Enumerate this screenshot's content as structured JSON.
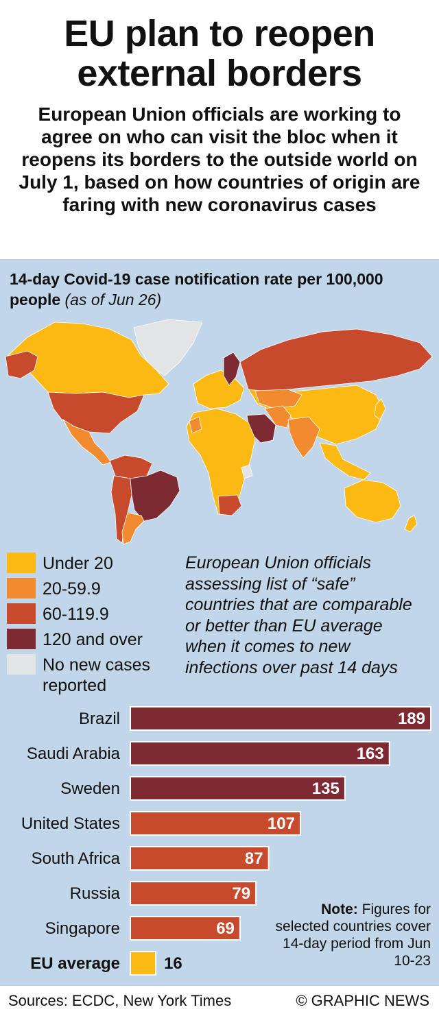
{
  "header": {
    "title": "EU plan to reopen external borders",
    "subtitle": "European Union officials are working to agree on who can visit the bloc when it reopens its borders to the outside world on July 1, based on how countries of origin are faring with new coronavirus cases"
  },
  "map": {
    "title": "14-day Covid-19 case notification rate per 100,000 people",
    "title_note": "(as of Jun 26)",
    "ocean_color": "#c2d6ea"
  },
  "legend": {
    "items": [
      {
        "label": "Under 20",
        "color": "#fdb913"
      },
      {
        "label": "20-59.9",
        "color": "#f28b30"
      },
      {
        "label": "60-119.9",
        "color": "#c84a2c"
      },
      {
        "label": "120 and over",
        "color": "#7e2a33"
      },
      {
        "label": "No new cases reported",
        "color": "#e2e4e6"
      }
    ]
  },
  "note_text": "European Union officials assessing list of “safe” countries that are comparable or better than EU average when it comes to new infections over past 14 days",
  "chart_data": {
    "type": "bar",
    "orientation": "horizontal",
    "categories": [
      "Brazil",
      "Saudi Arabia",
      "Sweden",
      "United States",
      "South Africa",
      "Russia",
      "Singapore",
      "EU average"
    ],
    "values": [
      189,
      163,
      135,
      107,
      87,
      79,
      69,
      16
    ],
    "bar_colors": [
      "#7e2a33",
      "#7e2a33",
      "#7e2a33",
      "#c84a2c",
      "#c84a2c",
      "#c84a2c",
      "#c84a2c",
      "#fdb913"
    ],
    "highlight": "EU average"
  },
  "footnote": {
    "bold": "Note:",
    "text": "Figures for selected countries cover 14-day period from Jun 10-23"
  },
  "footer": {
    "sources": "Sources: ECDC, New York Times",
    "credit": "© GRAPHIC NEWS"
  }
}
